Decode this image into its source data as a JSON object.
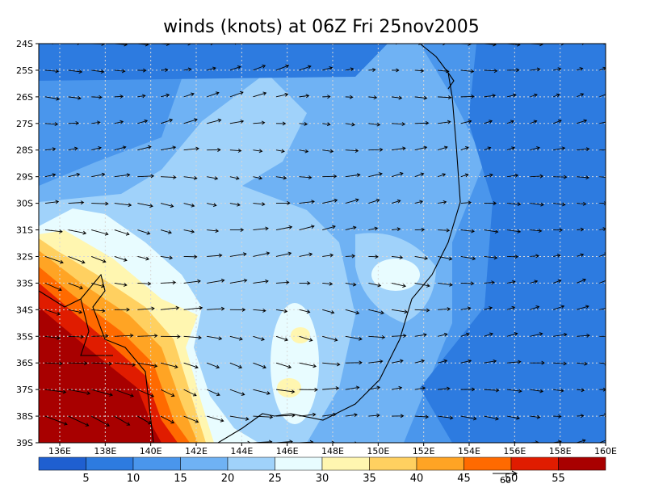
{
  "title": "winds (knots) at 06Z Fri 25nov2005",
  "latitude_labels": [
    "24S",
    "25S",
    "26S",
    "27S",
    "28S",
    "29S",
    "30S",
    "31S",
    "32S",
    "33S",
    "34S",
    "35S",
    "36S",
    "37S",
    "38S",
    "39S"
  ],
  "longitude_labels": [
    "136E",
    "138E",
    "140E",
    "142E",
    "144E",
    "146E",
    "148E",
    "150E",
    "152E",
    "154E",
    "156E",
    "158E",
    "160E"
  ],
  "colorbar": {
    "levels": [
      5,
      10,
      15,
      20,
      25,
      30,
      35,
      40,
      45,
      50,
      55
    ],
    "colors": [
      "#1f5fd0",
      "#2d7be0",
      "#4a96ec",
      "#6fb2f4",
      "#a0d2fa",
      "#e8fcff",
      "#fff6b0",
      "#ffd060",
      "#ffa424",
      "#ff6a00",
      "#e01c00",
      "#a80000"
    ]
  },
  "reference_vector": {
    "label": "60"
  }
}
